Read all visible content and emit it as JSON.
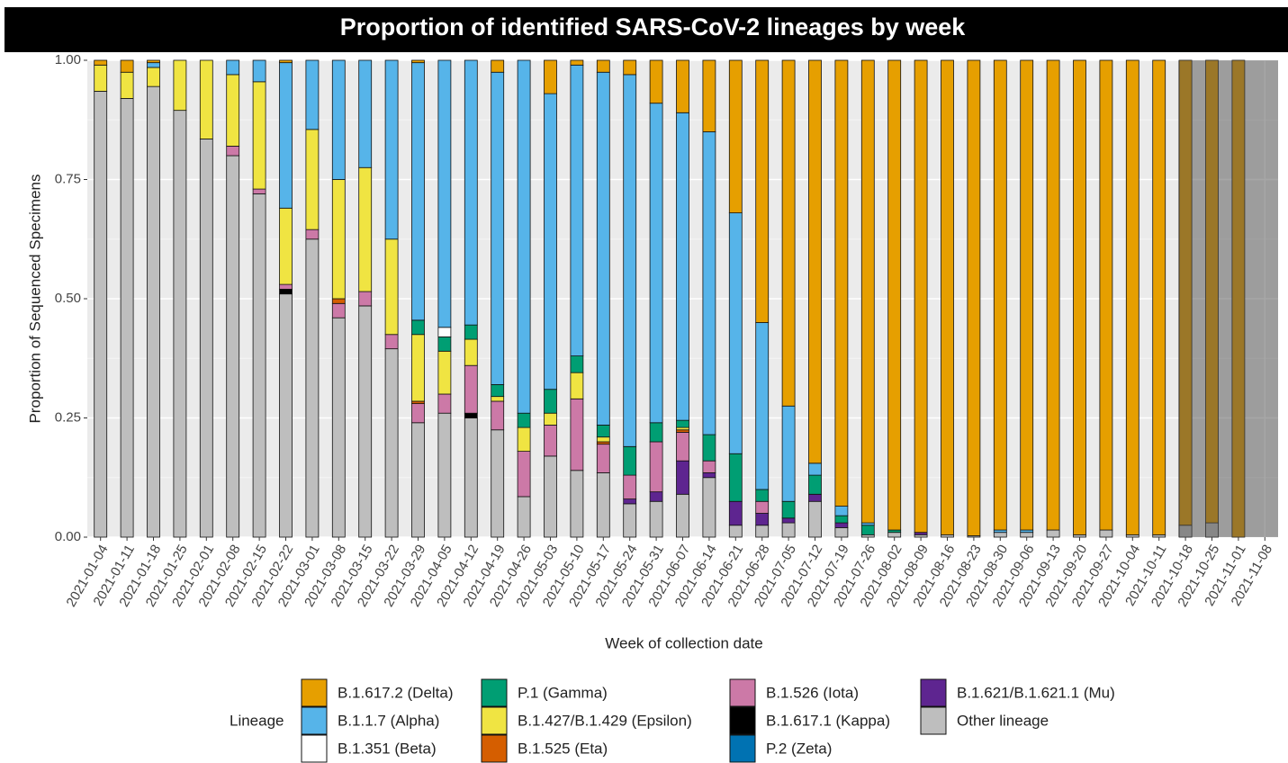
{
  "chart_data": {
    "type": "stacked_bar",
    "title": "Proportion of identified SARS-CoV-2 lineages by week",
    "x_label": "Week of collection date",
    "y_label": "Proportion of Sequenced Specimens",
    "legend_title": "Lineage",
    "categories": [
      "2021-01-04",
      "2021-01-11",
      "2021-01-18",
      "2021-01-25",
      "2021-02-01",
      "2021-02-08",
      "2021-02-15",
      "2021-02-22",
      "2021-03-01",
      "2021-03-08",
      "2021-03-15",
      "2021-03-22",
      "2021-03-29",
      "2021-04-05",
      "2021-04-12",
      "2021-04-19",
      "2021-04-26",
      "2021-05-03",
      "2021-05-10",
      "2021-05-17",
      "2021-05-24",
      "2021-05-31",
      "2021-06-07",
      "2021-06-14",
      "2021-06-21",
      "2021-06-28",
      "2021-07-05",
      "2021-07-12",
      "2021-07-19",
      "2021-07-26",
      "2021-08-02",
      "2021-08-09",
      "2021-08-16",
      "2021-08-23",
      "2021-08-30",
      "2021-09-06",
      "2021-09-13",
      "2021-09-20",
      "2021-09-27",
      "2021-10-04",
      "2021-10-11",
      "2021-10-18",
      "2021-10-25",
      "2021-11-01",
      "2021-11-08"
    ],
    "ylim": [
      0,
      1
    ],
    "yticks": [
      {
        "value": 0,
        "label": "0.00"
      },
      0.25,
      {
        "value": 0.5,
        "label": "0.50"
      },
      0.75,
      {
        "value": 1,
        "label": "1.00"
      }
    ],
    "grid": true,
    "series": [
      {
        "name": "B.1.617.2 (Delta)",
        "color": "#E69F00",
        "values": [
          0.01,
          0.025,
          0.005,
          0,
          0,
          0,
          0,
          0.005,
          0,
          0,
          0,
          0,
          0.005,
          0,
          0,
          0.025,
          0,
          0.07,
          0.01,
          0.025,
          0.03,
          0.09,
          0.11,
          0.15,
          0.32,
          0.55,
          0.725,
          0.845,
          0.935,
          0.97,
          0.985,
          0.99,
          0.995,
          0.997,
          0.985,
          0.985,
          0.985,
          0.995,
          0.985,
          0.995,
          0.995,
          0.975,
          0.97,
          1,
          null
        ]
      },
      {
        "name": "B.1.1.7 (Alpha)",
        "color": "#56B4E9",
        "values": [
          0,
          0,
          0.01,
          0,
          0,
          0.03,
          0.045,
          0.305,
          0.145,
          0.25,
          0.225,
          0.375,
          0.54,
          0.56,
          0.555,
          0.655,
          0.74,
          0.62,
          0.61,
          0.74,
          0.78,
          0.67,
          0.645,
          0.635,
          0.505,
          0.35,
          0.2,
          0.025,
          0.02,
          0.005,
          0,
          0,
          0,
          0,
          0.005,
          0.005,
          0,
          0,
          0,
          0,
          0,
          0,
          0,
          0,
          null
        ]
      },
      {
        "name": "B.1.351 (Beta)",
        "color": "#FFFFFF",
        "values": [
          0,
          0,
          0,
          0,
          0,
          0,
          0,
          0,
          0,
          0,
          0,
          0,
          0,
          0.02,
          0,
          0,
          0,
          0,
          0,
          0,
          0,
          0,
          0,
          0,
          0,
          0,
          0,
          0,
          0,
          0,
          0,
          0,
          0,
          0,
          0,
          0,
          0,
          0,
          0,
          0,
          0,
          0,
          0,
          0,
          null
        ]
      },
      {
        "name": "P.1 (Gamma)",
        "color": "#009E73",
        "values": [
          0,
          0,
          0,
          0,
          0,
          0,
          0,
          0,
          0,
          0,
          0,
          0,
          0.03,
          0.03,
          0.03,
          0.025,
          0.03,
          0.05,
          0.035,
          0.025,
          0.06,
          0.04,
          0.015,
          0.055,
          0.1,
          0.025,
          0.035,
          0.04,
          0.015,
          0.02,
          0.005,
          0,
          0,
          0,
          0,
          0,
          0,
          0,
          0,
          0,
          0,
          0,
          0,
          0,
          null
        ]
      },
      {
        "name": "B.1.427/B.1.429 (Epsilon)",
        "color": "#F0E442",
        "values": [
          0.055,
          0.055,
          0.04,
          0.105,
          0.165,
          0.15,
          0.225,
          0.16,
          0.21,
          0.25,
          0.26,
          0.2,
          0.14,
          0.09,
          0.055,
          0.01,
          0.05,
          0.025,
          0.055,
          0.01,
          0,
          0,
          0.005,
          0,
          0,
          0,
          0,
          0,
          0,
          0,
          0,
          0,
          0,
          0,
          0,
          0,
          0,
          0,
          0,
          0,
          0,
          0,
          0,
          0,
          null
        ]
      },
      {
        "name": "B.1.525 (Eta)",
        "color": "#D55E00",
        "values": [
          0,
          0,
          0,
          0,
          0,
          0,
          0,
          0,
          0,
          0.01,
          0,
          0,
          0.005,
          0,
          0,
          0,
          0,
          0,
          0,
          0.005,
          0,
          0,
          0.005,
          0,
          0,
          0,
          0,
          0,
          0,
          0,
          0,
          0,
          0,
          0,
          0,
          0,
          0,
          0,
          0,
          0,
          0,
          0,
          0,
          0,
          null
        ]
      },
      {
        "name": "B.1.526 (Iota)",
        "color": "#CC79A7",
        "values": [
          0,
          0,
          0,
          0,
          0,
          0.02,
          0.01,
          0.01,
          0.02,
          0.03,
          0.03,
          0.03,
          0.04,
          0.04,
          0.1,
          0.06,
          0.095,
          0.065,
          0.15,
          0.06,
          0.05,
          0.105,
          0.06,
          0.025,
          0,
          0.025,
          0,
          0,
          0,
          0,
          0,
          0,
          0,
          0,
          0,
          0,
          0,
          0,
          0,
          0,
          0,
          0,
          0,
          0,
          null
        ]
      },
      {
        "name": "B.1.617.1 (Kappa)",
        "color": "#000000",
        "values": [
          0,
          0,
          0,
          0,
          0,
          0,
          0,
          0.01,
          0,
          0,
          0,
          0,
          0,
          0,
          0.01,
          0,
          0,
          0,
          0,
          0,
          0,
          0,
          0,
          0,
          0,
          0,
          0,
          0,
          0,
          0,
          0,
          0,
          0,
          0,
          0,
          0,
          0,
          0,
          0,
          0,
          0,
          0,
          0,
          0,
          null
        ]
      },
      {
        "name": "P.2 (Zeta)",
        "color": "#0072B2",
        "values": [
          0,
          0,
          0,
          0,
          0,
          0,
          0,
          0,
          0,
          0,
          0,
          0,
          0,
          0,
          0,
          0,
          0,
          0,
          0,
          0,
          0,
          0,
          0,
          0,
          0,
          0,
          0,
          0,
          0,
          0,
          0,
          0,
          0,
          0,
          0,
          0,
          0,
          0,
          0,
          0,
          0,
          0,
          0,
          0,
          null
        ]
      },
      {
        "name": "B.1.621/B.1.621.1 (Mu)",
        "color": "#5E2590",
        "values": [
          0,
          0,
          0,
          0,
          0,
          0,
          0,
          0,
          0,
          0,
          0,
          0,
          0,
          0,
          0,
          0,
          0,
          0,
          0,
          0,
          0.01,
          0.02,
          0.07,
          0.01,
          0.05,
          0.025,
          0.01,
          0.015,
          0.01,
          0,
          0,
          0.005,
          0,
          0,
          0,
          0,
          0,
          0,
          0,
          0,
          0,
          0,
          0,
          0,
          null
        ]
      },
      {
        "name": "Other lineage",
        "color": "#BEBEBE",
        "values": [
          0.935,
          0.92,
          0.945,
          0.895,
          0.835,
          0.8,
          0.72,
          0.51,
          0.625,
          0.46,
          0.485,
          0.395,
          0.24,
          0.26,
          0.25,
          0.225,
          0.085,
          0.17,
          0.14,
          0.135,
          0.07,
          0.075,
          0.09,
          0.125,
          0.025,
          0.025,
          0.03,
          0.075,
          0.02,
          0.005,
          0.01,
          0.005,
          0.005,
          0.003,
          0.01,
          0.01,
          0.015,
          0.005,
          0.015,
          0.005,
          0.005,
          0.025,
          0.03,
          0,
          null
        ]
      }
    ]
  }
}
